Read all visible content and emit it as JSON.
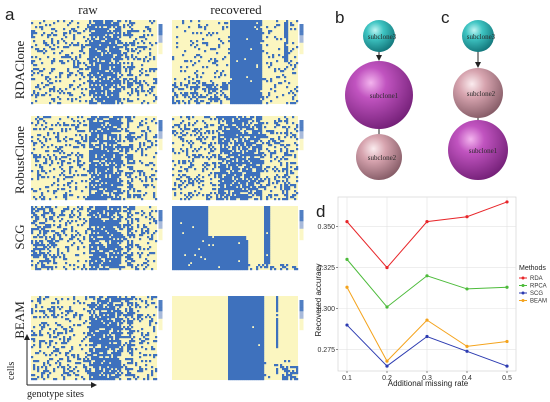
{
  "panel_a": {
    "letter": "a",
    "columns": [
      "raw",
      "recovered"
    ],
    "rows": [
      {
        "label": "RDAClone"
      },
      {
        "label": "RobustClone"
      },
      {
        "label": "SCG"
      },
      {
        "label": "BEAM"
      }
    ],
    "y_axis_label": "cells",
    "x_axis_label": "genotype sites",
    "colors": {
      "low": "#fbf6c0",
      "high": "#3e71bd"
    }
  },
  "panel_b": {
    "letter": "b",
    "nodes": [
      {
        "label": "subclone3",
        "color": "teal"
      },
      {
        "label": "subclone1",
        "color": "magenta"
      },
      {
        "label": "subclone2",
        "color": "pink"
      }
    ]
  },
  "panel_c": {
    "letter": "c",
    "nodes": [
      {
        "label": "subclone3",
        "color": "teal"
      },
      {
        "label": "subclone2",
        "color": "pink"
      },
      {
        "label": "subclone1",
        "color": "magenta"
      }
    ]
  },
  "panel_d": {
    "letter": "d",
    "chart_data": {
      "type": "line",
      "x": [
        0.1,
        0.2,
        0.3,
        0.4,
        0.5
      ],
      "x_tick_labels": [
        "0.1",
        "0.2",
        "0.3",
        "0.4",
        "0.5"
      ],
      "xlabel": "Additional missing rate",
      "ylabel": "Recovered accuracy",
      "ylim": [
        0.262,
        0.368
      ],
      "y_ticks": [
        0.275,
        0.3,
        0.325,
        0.35
      ],
      "y_tick_labels": [
        "0.275",
        "0.300",
        "0.325",
        "0.350"
      ],
      "legend_title": "Methods",
      "legend_position": "right",
      "series": [
        {
          "name": "RDA",
          "color": "#e8262a",
          "values": [
            0.353,
            0.325,
            0.353,
            0.356,
            0.365
          ]
        },
        {
          "name": "RPCA",
          "color": "#4cbb3a",
          "values": [
            0.33,
            0.301,
            0.32,
            0.312,
            0.313
          ]
        },
        {
          "name": "SCG",
          "color": "#2c3bb1",
          "values": [
            0.29,
            0.265,
            0.283,
            0.274,
            0.265
          ]
        },
        {
          "name": "BEAM",
          "color": "#f4a31c",
          "values": [
            0.313,
            0.268,
            0.293,
            0.277,
            0.28
          ]
        }
      ]
    }
  }
}
